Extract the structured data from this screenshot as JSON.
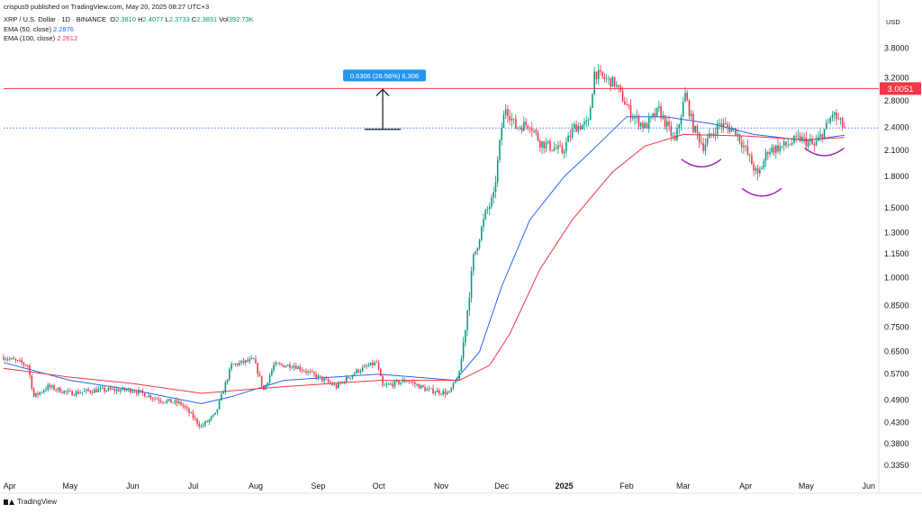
{
  "publisher_line": "crispus9 published on TradingView.com, May 20, 2025 08:27 UTC+3",
  "symbol_line": {
    "symbol": "XRP / U.S. Dollar · 1D · BINANCE",
    "o_label": "O",
    "o": "2.3810",
    "h_label": "H",
    "h": "2.4077",
    "l_label": "L",
    "l": "2.3733",
    "c_label": "C",
    "c": "2.3891",
    "vol_label": "Vol",
    "vol": "392.73K"
  },
  "indicators": [
    {
      "label": "EMA (50, close)",
      "value": "2.2876",
      "color": "#2962ff"
    },
    {
      "label": "EMA (100, close)",
      "value": "2.2612",
      "color": "#f23645"
    }
  ],
  "currency": "USD",
  "footer_brand": "TradingView",
  "measure_label": "0.6306 (26.56%) 6,306",
  "price_label": "3.0051",
  "chart_data": {
    "type": "candlestick",
    "y_scale": "log",
    "ylim": [
      0.31,
      4.3
    ],
    "y_ticks": [
      "3.8000",
      "3.2000",
      "2.8000",
      "2.4000",
      "2.1000",
      "1.8000",
      "1.5000",
      "1.3000",
      "1.1500",
      "1.0000",
      "0.8500",
      "0.7500",
      "0.6500",
      "0.5700",
      "0.4900",
      "0.4300",
      "0.3800",
      "0.3350"
    ],
    "x_labels": [
      "Apr",
      "May",
      "Jun",
      "Jul",
      "Aug",
      "Sep",
      "Oct",
      "Nov",
      "Dec",
      "2025",
      "Feb",
      "Mar",
      "Apr",
      "May",
      "Jun"
    ],
    "x_range": [
      "2024-03-29",
      "2025-06-06"
    ],
    "x_label_dates": [
      "2024-04-01",
      "2024-05-01",
      "2024-06-01",
      "2024-07-01",
      "2024-08-01",
      "2024-09-01",
      "2024-10-01",
      "2024-11-01",
      "2024-12-01",
      "2025-01-01",
      "2025-02-01",
      "2025-03-01",
      "2025-04-01",
      "2025-05-01",
      "2025-06-01"
    ],
    "bull_color": "#089981",
    "bear_color": "#f23645",
    "close_path": [
      [
        "2024-03-29",
        0.63
      ],
      [
        "2024-04-10",
        0.6
      ],
      [
        "2024-04-13",
        0.5
      ],
      [
        "2024-04-20",
        0.53
      ],
      [
        "2024-05-01",
        0.51
      ],
      [
        "2024-05-15",
        0.52
      ],
      [
        "2024-06-01",
        0.52
      ],
      [
        "2024-06-15",
        0.49
      ],
      [
        "2024-06-25",
        0.48
      ],
      [
        "2024-07-05",
        0.42
      ],
      [
        "2024-07-12",
        0.45
      ],
      [
        "2024-07-20",
        0.6
      ],
      [
        "2024-07-31",
        0.62
      ],
      [
        "2024-08-05",
        0.52
      ],
      [
        "2024-08-10",
        0.6
      ],
      [
        "2024-08-20",
        0.6
      ],
      [
        "2024-09-01",
        0.56
      ],
      [
        "2024-09-10",
        0.53
      ],
      [
        "2024-09-20",
        0.58
      ],
      [
        "2024-09-30",
        0.61
      ],
      [
        "2024-10-03",
        0.53
      ],
      [
        "2024-10-15",
        0.55
      ],
      [
        "2024-10-25",
        0.52
      ],
      [
        "2024-11-05",
        0.51
      ],
      [
        "2024-11-10",
        0.57
      ],
      [
        "2024-11-13",
        0.75
      ],
      [
        "2024-11-17",
        1.12
      ],
      [
        "2024-11-23",
        1.45
      ],
      [
        "2024-11-27",
        1.6
      ],
      [
        "2024-12-01",
        2.4
      ],
      [
        "2024-12-03",
        2.7
      ],
      [
        "2024-12-08",
        2.4
      ],
      [
        "2024-12-15",
        2.45
      ],
      [
        "2024-12-20",
        2.2
      ],
      [
        "2024-12-31",
        2.08
      ],
      [
        "2025-01-06",
        2.4
      ],
      [
        "2025-01-13",
        2.45
      ],
      [
        "2025-01-16",
        3.3
      ],
      [
        "2025-01-20",
        3.2
      ],
      [
        "2025-01-26",
        3.1
      ],
      [
        "2025-02-03",
        2.6
      ],
      [
        "2025-02-10",
        2.4
      ],
      [
        "2025-02-17",
        2.65
      ],
      [
        "2025-02-25",
        2.2
      ],
      [
        "2025-03-02",
        2.9
      ],
      [
        "2025-03-06",
        2.4
      ],
      [
        "2025-03-11",
        2.15
      ],
      [
        "2025-03-19",
        2.45
      ],
      [
        "2025-03-27",
        2.35
      ],
      [
        "2025-04-01",
        2.1
      ],
      [
        "2025-04-07",
        1.8
      ],
      [
        "2025-04-12",
        2.1
      ],
      [
        "2025-04-20",
        2.15
      ],
      [
        "2025-04-28",
        2.25
      ],
      [
        "2025-05-05",
        2.15
      ],
      [
        "2025-05-12",
        2.45
      ],
      [
        "2025-05-14",
        2.6
      ],
      [
        "2025-05-20",
        2.39
      ]
    ],
    "series": [
      {
        "name": "EMA (50, close)",
        "color": "#2962ff",
        "points": [
          [
            "2024-03-29",
            0.61
          ],
          [
            "2024-05-01",
            0.55
          ],
          [
            "2024-06-01",
            0.52
          ],
          [
            "2024-07-05",
            0.48
          ],
          [
            "2024-07-20",
            0.5
          ],
          [
            "2024-08-15",
            0.55
          ],
          [
            "2024-10-01",
            0.57
          ],
          [
            "2024-11-08",
            0.55
          ],
          [
            "2024-11-20",
            0.65
          ],
          [
            "2024-12-01",
            0.95
          ],
          [
            "2024-12-15",
            1.4
          ],
          [
            "2025-01-01",
            1.8
          ],
          [
            "2025-01-15",
            2.1
          ],
          [
            "2025-02-01",
            2.55
          ],
          [
            "2025-02-20",
            2.55
          ],
          [
            "2025-03-15",
            2.45
          ],
          [
            "2025-04-05",
            2.3
          ],
          [
            "2025-05-01",
            2.22
          ],
          [
            "2025-05-20",
            2.29
          ]
        ]
      },
      {
        "name": "EMA (100, close)",
        "color": "#f23645",
        "points": [
          [
            "2024-03-29",
            0.59
          ],
          [
            "2024-05-01",
            0.56
          ],
          [
            "2024-06-01",
            0.54
          ],
          [
            "2024-07-05",
            0.51
          ],
          [
            "2024-08-15",
            0.53
          ],
          [
            "2024-10-01",
            0.55
          ],
          [
            "2024-11-10",
            0.55
          ],
          [
            "2024-11-25",
            0.6
          ],
          [
            "2024-12-05",
            0.72
          ],
          [
            "2024-12-20",
            1.05
          ],
          [
            "2025-01-05",
            1.4
          ],
          [
            "2025-01-25",
            1.85
          ],
          [
            "2025-02-10",
            2.15
          ],
          [
            "2025-03-01",
            2.3
          ],
          [
            "2025-04-01",
            2.28
          ],
          [
            "2025-05-01",
            2.23
          ],
          [
            "2025-05-20",
            2.26
          ]
        ]
      }
    ],
    "resistance_level": 3.0051,
    "current_price_line": 2.3891,
    "measure": {
      "from_price": 2.37,
      "to_price": 3.0051,
      "date": "2024-10-03"
    },
    "pattern_arcs": [
      {
        "date": "2025-03-10",
        "price": 1.92
      },
      {
        "date": "2025-04-09",
        "price": 1.62
      },
      {
        "date": "2025-05-10",
        "price": 2.05
      }
    ]
  }
}
